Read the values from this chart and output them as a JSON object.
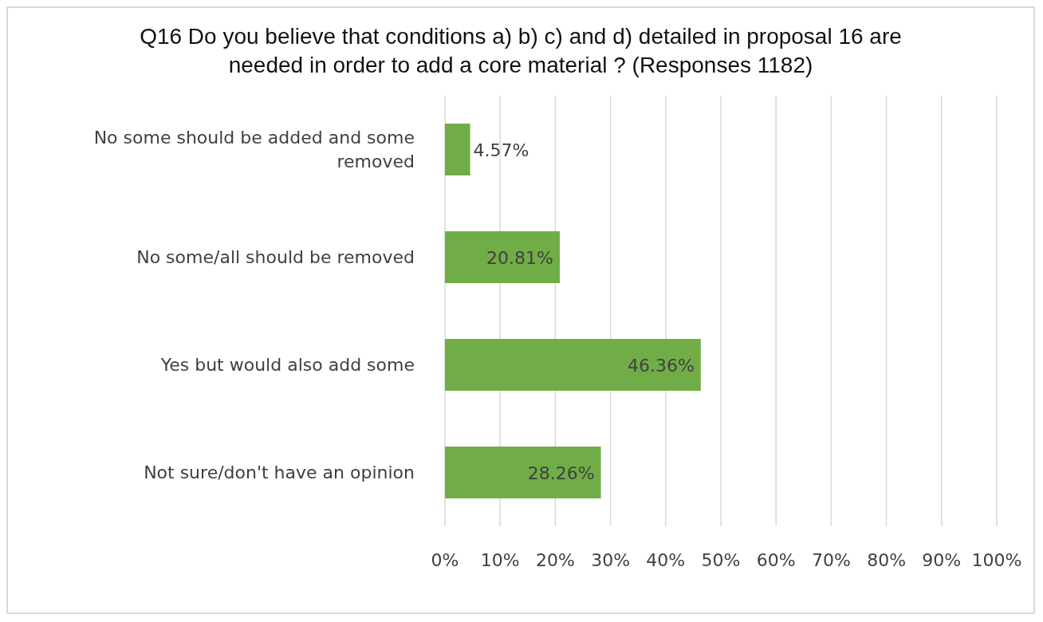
{
  "chart_data": {
    "type": "bar",
    "orientation": "horizontal",
    "title": "Q16 Do you believe that conditions a) b) c) and d)  detailed in proposal 16 are needed in order to add a core material ? (Responses 1182)",
    "categories": [
      "No some should be added and some removed",
      "No some/all should be removed",
      "Yes but would also add some",
      "Not sure/don't have an opinion"
    ],
    "values": [
      4.57,
      20.81,
      46.36,
      28.26
    ],
    "value_labels": [
      "4.57%",
      "20.81%",
      "46.36%",
      "28.26%"
    ],
    "color": "#70ad47",
    "xlim": [
      0,
      100
    ],
    "xticks": [
      {
        "value": 0,
        "label": "0%"
      },
      {
        "value": 10,
        "label": "10%"
      },
      {
        "value": 20,
        "label": "20%"
      },
      {
        "value": 30,
        "label": "30%"
      },
      {
        "value": 40,
        "label": "40%"
      },
      {
        "value": 50,
        "label": "50%"
      },
      {
        "value": 60,
        "label": "60%"
      },
      {
        "value": 70,
        "label": "70%"
      },
      {
        "value": 80,
        "label": "80%"
      },
      {
        "value": 90,
        "label": "90%"
      },
      {
        "value": 100,
        "label": "100%"
      }
    ],
    "grid": "x"
  }
}
